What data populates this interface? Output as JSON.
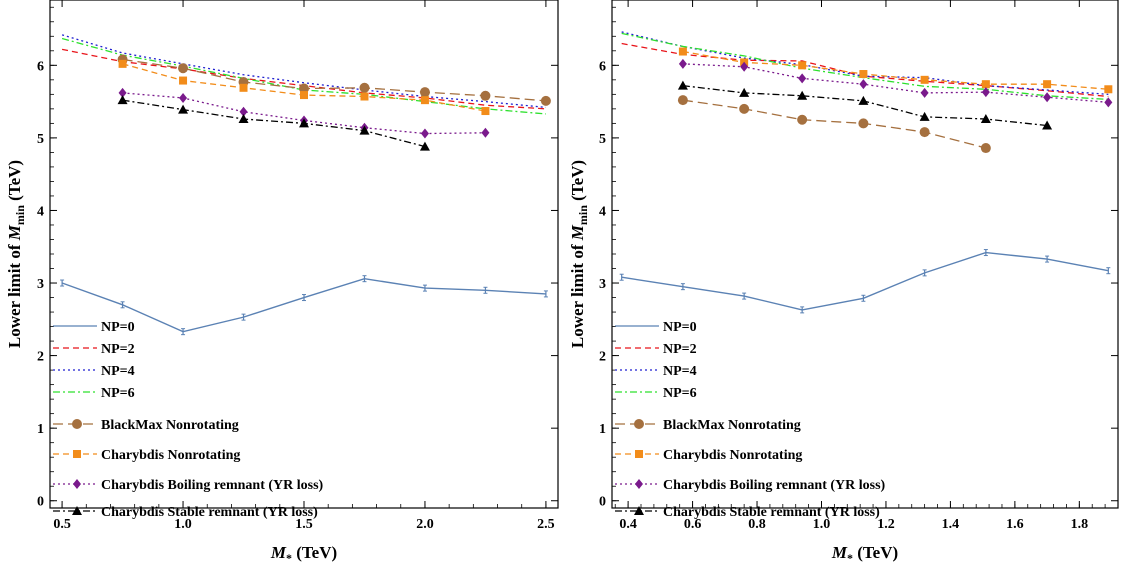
{
  "chart_data": [
    {
      "type": "line",
      "xlabel": "M* (TeV)",
      "ylabel": "Lower limit of Mmin (TeV)",
      "xlim": [
        0.45,
        2.55
      ],
      "ylim": [
        -0.1,
        6.9
      ],
      "xticks": [
        "0.5",
        "1.0",
        "1.5",
        "2.0",
        "2.5"
      ],
      "xtick_values": [
        0.5,
        1.0,
        1.5,
        2.0,
        2.5
      ],
      "yticks": [
        "0",
        "1",
        "2",
        "3",
        "4",
        "5",
        "6"
      ],
      "ytick_values": [
        0,
        1,
        2,
        3,
        4,
        5,
        6
      ],
      "series": [
        {
          "name": "NP=0",
          "style": "solid",
          "color": "#5b82b4",
          "marker": "errorbar",
          "x": [
            0.5,
            0.75,
            1.0,
            1.25,
            1.5,
            1.75,
            2.0,
            2.25,
            2.5
          ],
          "y": [
            3.0,
            2.7,
            2.33,
            2.53,
            2.8,
            3.06,
            2.93,
            2.9,
            2.85
          ]
        },
        {
          "name": "NP=2",
          "style": "dashed",
          "color": "#e8141a",
          "marker": "none",
          "x": [
            0.5,
            0.75,
            1.0,
            1.25,
            1.5,
            1.75,
            2.0,
            2.25,
            2.5
          ],
          "y": [
            6.22,
            6.05,
            5.95,
            5.82,
            5.72,
            5.62,
            5.55,
            5.45,
            5.4
          ]
        },
        {
          "name": "NP=4",
          "style": "dotted",
          "color": "#1f1fd0",
          "marker": "none",
          "x": [
            0.5,
            0.75,
            1.0,
            1.25,
            1.5,
            1.75,
            2.0,
            2.25,
            2.5
          ],
          "y": [
            6.42,
            6.17,
            6.02,
            5.87,
            5.76,
            5.66,
            5.57,
            5.5,
            5.42
          ]
        },
        {
          "name": "NP=6",
          "style": "dashdot",
          "color": "#2ee02e",
          "marker": "none",
          "x": [
            0.5,
            0.75,
            1.0,
            1.25,
            1.5,
            1.75,
            2.0,
            2.25,
            2.5
          ],
          "y": [
            6.37,
            6.14,
            5.99,
            5.82,
            5.66,
            5.6,
            5.5,
            5.4,
            5.33
          ]
        },
        {
          "name": "BlackMax Nonrotating",
          "style": "longdash",
          "color": "#a5703f",
          "marker": "circle",
          "x": [
            0.75,
            1.0,
            1.25,
            1.5,
            1.75,
            2.0,
            2.25,
            2.5
          ],
          "y": [
            6.08,
            5.96,
            5.77,
            5.68,
            5.69,
            5.63,
            5.58,
            5.51
          ]
        },
        {
          "name": "Charybdis Nonrotating",
          "style": "dashed",
          "color": "#f28c1a",
          "marker": "square",
          "x": [
            0.75,
            1.0,
            1.25,
            1.5,
            1.75,
            2.0,
            2.25
          ],
          "y": [
            6.02,
            5.79,
            5.69,
            5.59,
            5.57,
            5.52,
            5.37
          ]
        },
        {
          "name": "Charybdis Boiling remnant (YR loss)",
          "style": "dotted",
          "color": "#7a1a8c",
          "marker": "diamond",
          "x": [
            0.75,
            1.0,
            1.25,
            1.5,
            1.75,
            2.0,
            2.25
          ],
          "y": [
            5.62,
            5.55,
            5.36,
            5.24,
            5.14,
            5.06,
            5.07
          ]
        },
        {
          "name": "Charybdis Stable remnant (YR loss)",
          "style": "dashdot",
          "color": "#000000",
          "marker": "triangle",
          "x": [
            0.75,
            1.0,
            1.25,
            1.5,
            1.75,
            2.0
          ],
          "y": [
            5.52,
            5.39,
            5.26,
            5.2,
            5.1,
            4.88
          ]
        }
      ]
    },
    {
      "type": "line",
      "xlabel": "M* (TeV)",
      "ylabel": "Lower limit of Mmin (TeV)",
      "xlim": [
        0.35,
        1.92
      ],
      "ylim": [
        -0.1,
        6.9
      ],
      "xticks": [
        "0.4",
        "0.6",
        "0.8",
        "1.0",
        "1.2",
        "1.4",
        "1.6",
        "1.8"
      ],
      "xtick_values": [
        0.4,
        0.6,
        0.8,
        1.0,
        1.2,
        1.4,
        1.6,
        1.8
      ],
      "yticks": [
        "0",
        "1",
        "2",
        "3",
        "4",
        "5",
        "6"
      ],
      "ytick_values": [
        0,
        1,
        2,
        3,
        4,
        5,
        6
      ],
      "series": [
        {
          "name": "NP=0",
          "style": "solid",
          "color": "#5b82b4",
          "marker": "errorbar",
          "x": [
            0.38,
            0.57,
            0.76,
            0.94,
            1.13,
            1.32,
            1.51,
            1.7,
            1.89
          ],
          "y": [
            3.08,
            2.95,
            2.82,
            2.63,
            2.79,
            3.14,
            3.42,
            3.33,
            3.17
          ]
        },
        {
          "name": "NP=2",
          "style": "dashed",
          "color": "#e8141a",
          "marker": "none",
          "x": [
            0.38,
            0.57,
            0.76,
            0.94,
            1.13,
            1.32,
            1.51,
            1.7,
            1.89
          ],
          "y": [
            6.3,
            6.15,
            6.07,
            6.06,
            5.85,
            5.78,
            5.72,
            5.65,
            5.57
          ]
        },
        {
          "name": "NP=4",
          "style": "dotted",
          "color": "#1f1fd0",
          "marker": "none",
          "x": [
            0.38,
            0.57,
            0.76,
            0.94,
            1.13,
            1.32,
            1.51,
            1.7,
            1.89
          ],
          "y": [
            6.46,
            6.26,
            6.1,
            6.01,
            5.85,
            5.83,
            5.72,
            5.66,
            5.6
          ]
        },
        {
          "name": "NP=6",
          "style": "dashdot",
          "color": "#2ee02e",
          "marker": "none",
          "x": [
            0.38,
            0.57,
            0.76,
            0.94,
            1.13,
            1.32,
            1.51,
            1.7,
            1.89
          ],
          "y": [
            6.44,
            6.26,
            6.13,
            5.96,
            5.83,
            5.71,
            5.67,
            5.58,
            5.53
          ]
        },
        {
          "name": "BlackMax Nonrotating",
          "style": "longdash",
          "color": "#a5703f",
          "marker": "circle",
          "x": [
            0.57,
            0.76,
            0.94,
            1.13,
            1.32,
            1.51
          ],
          "y": [
            5.52,
            5.4,
            5.25,
            5.2,
            5.08,
            4.86
          ]
        },
        {
          "name": "Charybdis Nonrotating",
          "style": "dashed",
          "color": "#f28c1a",
          "marker": "square",
          "x": [
            0.57,
            0.76,
            0.94,
            1.13,
            1.32,
            1.51,
            1.7,
            1.89
          ],
          "y": [
            6.19,
            6.04,
            6.0,
            5.88,
            5.8,
            5.74,
            5.74,
            5.67
          ]
        },
        {
          "name": "Charybdis Boiling remnant (YR loss)",
          "style": "dotted",
          "color": "#7a1a8c",
          "marker": "diamond",
          "x": [
            0.57,
            0.76,
            0.94,
            1.13,
            1.32,
            1.51,
            1.7,
            1.89
          ],
          "y": [
            6.02,
            5.98,
            5.82,
            5.74,
            5.62,
            5.63,
            5.56,
            5.49
          ]
        },
        {
          "name": "Charybdis Stable remnant (YR loss)",
          "style": "dashdot",
          "color": "#000000",
          "marker": "triangle",
          "x": [
            0.57,
            0.76,
            0.94,
            1.13,
            1.32,
            1.51,
            1.7
          ],
          "y": [
            5.72,
            5.62,
            5.58,
            5.51,
            5.29,
            5.26,
            5.17
          ]
        }
      ]
    }
  ]
}
